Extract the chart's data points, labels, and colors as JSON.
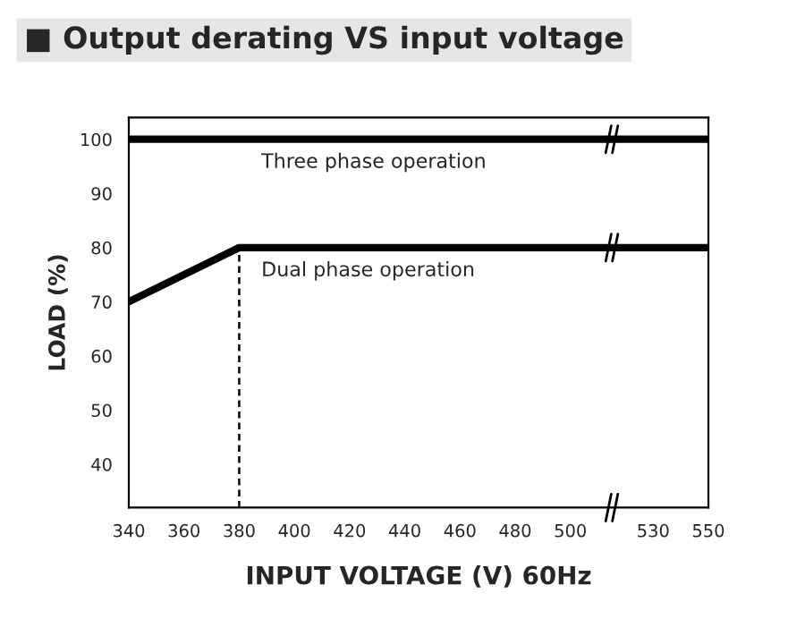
{
  "chart_data": {
    "type": "line",
    "title": "■ Output derating VS input voltage",
    "xlabel": "INPUT VOLTAGE (V) 60Hz",
    "ylabel": "LOAD (%)",
    "series": [
      {
        "name": "Three phase operation",
        "color": "#000000",
        "x": [
          340,
          550
        ],
        "values": [
          100,
          100
        ]
      },
      {
        "name": "Dual phase operation",
        "color": "#000000",
        "x": [
          340,
          380,
          550
        ],
        "values": [
          70,
          80,
          80
        ]
      },
      {
        "color": "#000000",
        "x": [
          380,
          380
        ],
        "values": [
          32,
          80
        ],
        "line_style": "dashed"
      }
    ],
    "xlim": [
      340,
      550
    ],
    "xticks": [
      340,
      360,
      380,
      400,
      420,
      440,
      460,
      480,
      500,
      530,
      550
    ],
    "ylim": [
      32,
      104
    ],
    "yticks": [
      40,
      50,
      60,
      70,
      80,
      90,
      100
    ],
    "grid": false,
    "legend": false,
    "marker": "none",
    "line_style": "solid"
  }
}
